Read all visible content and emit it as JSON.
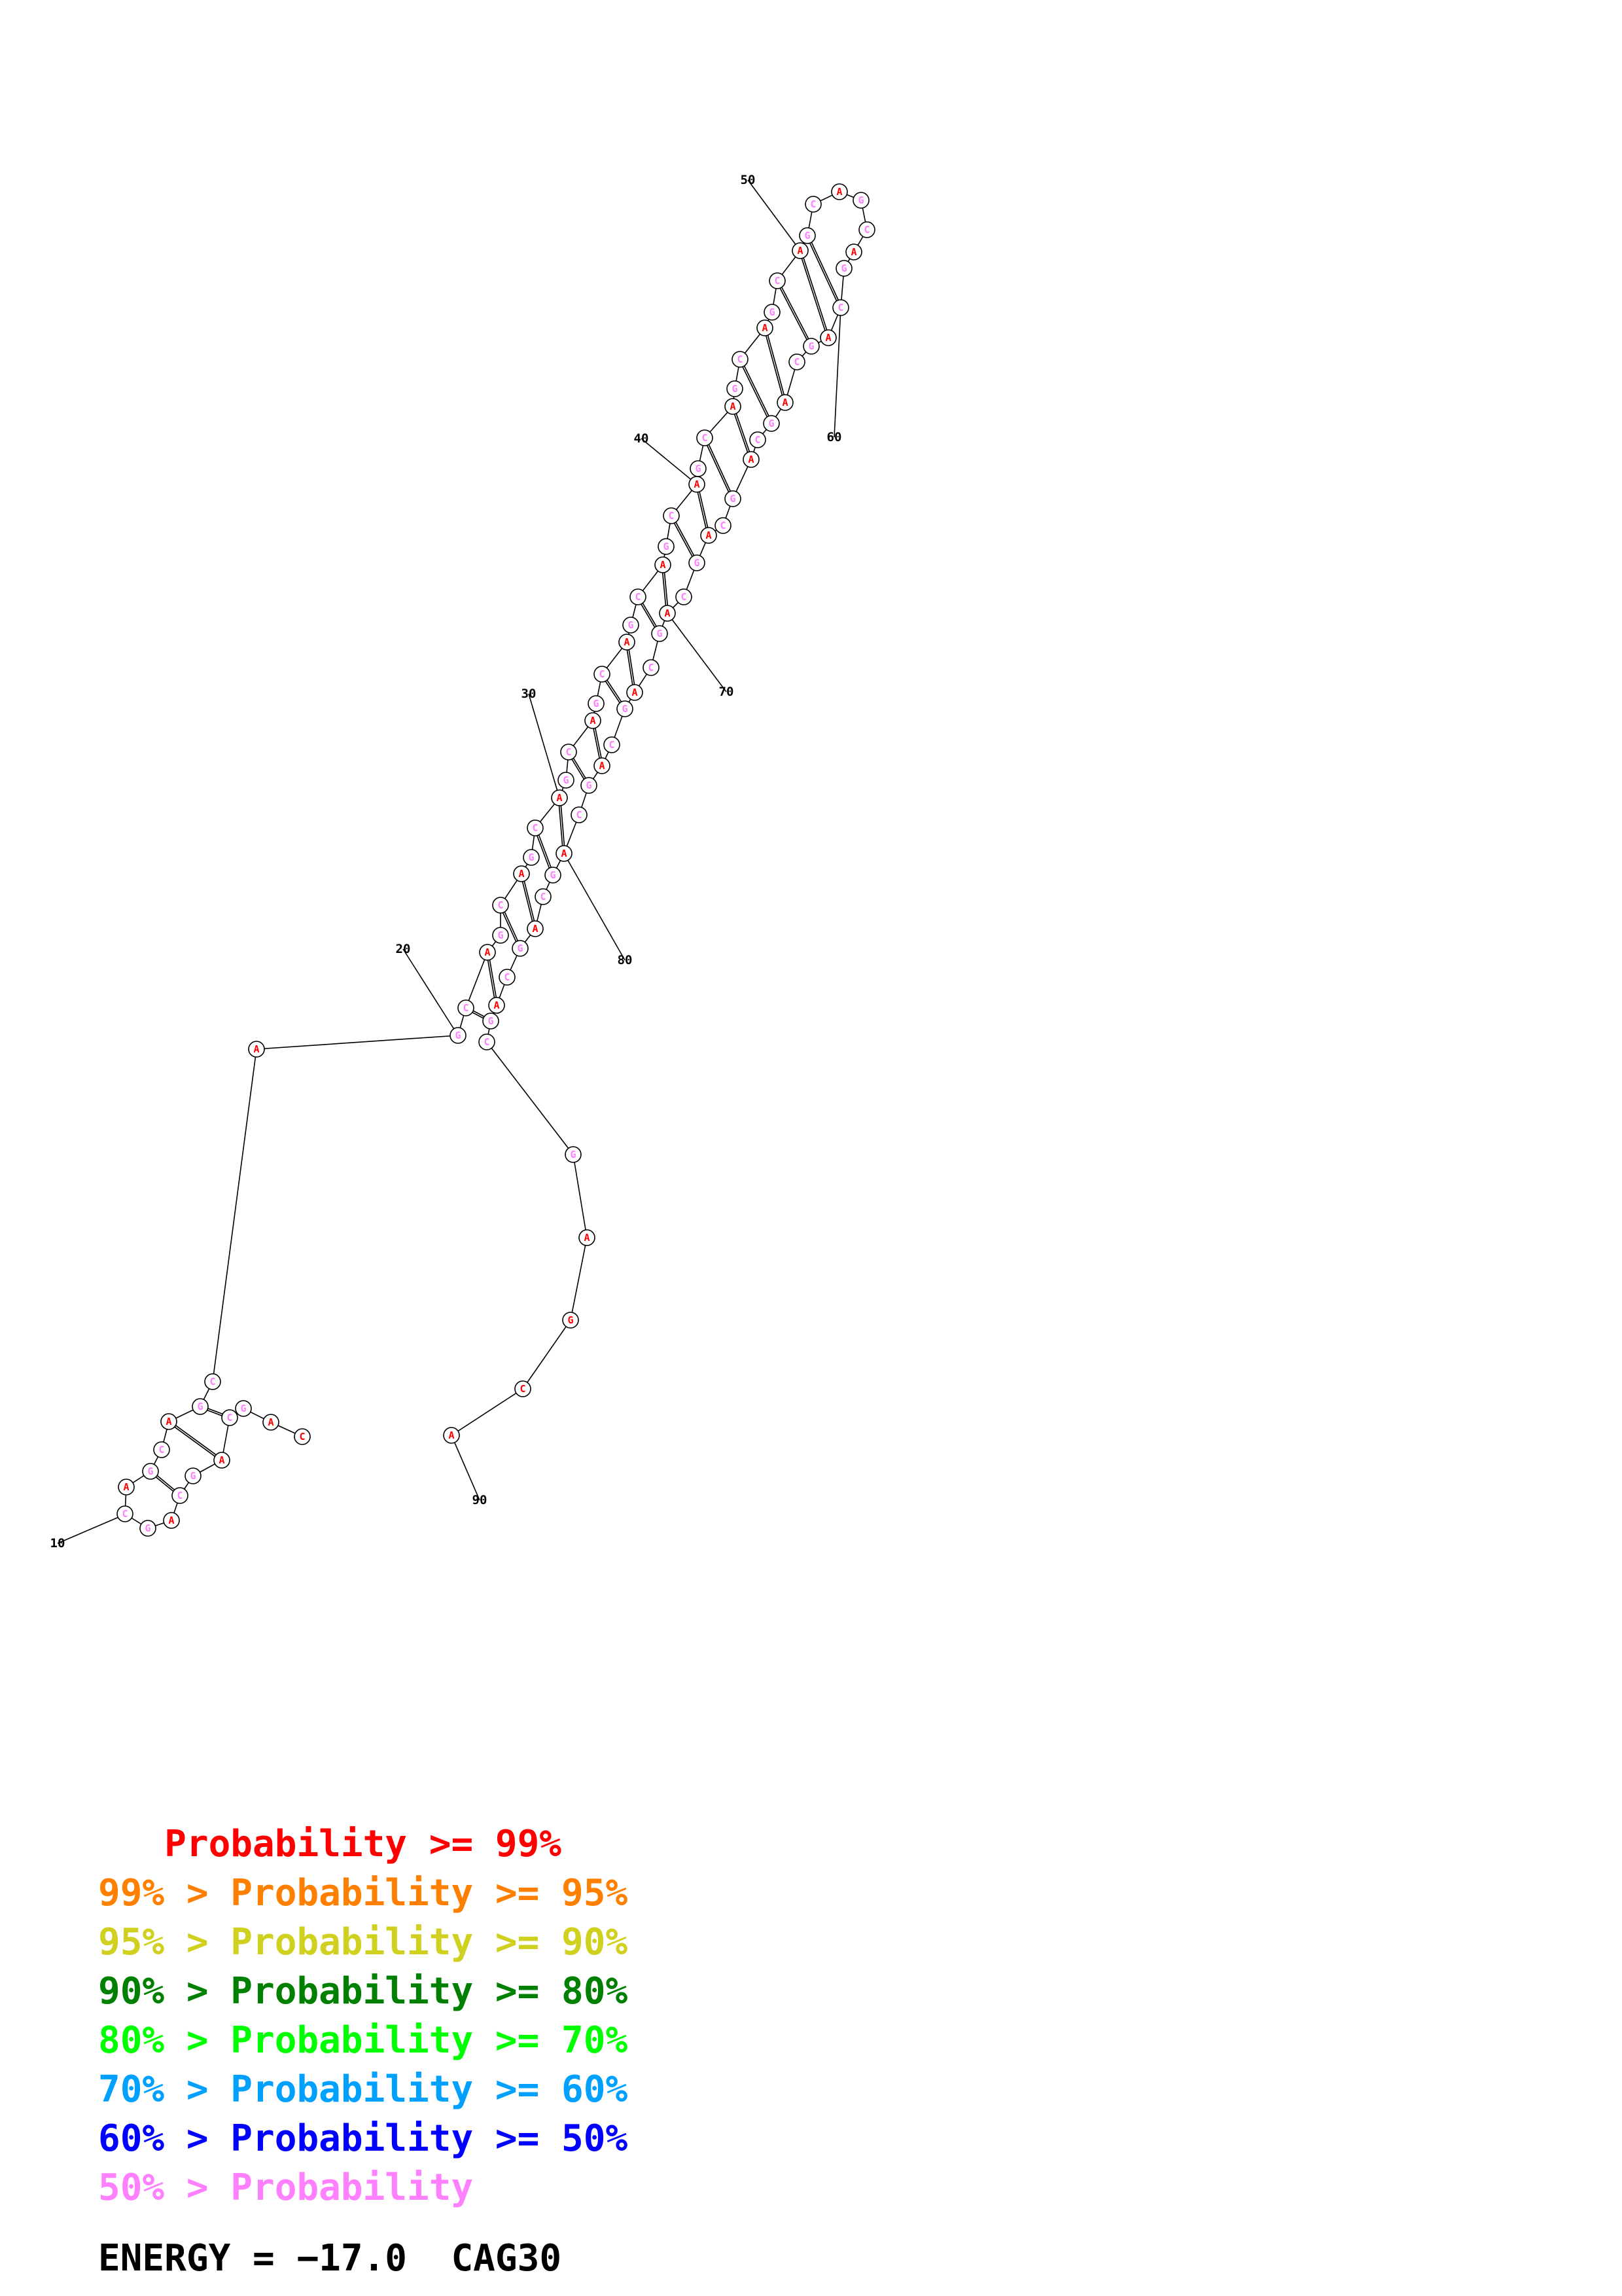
{
  "diagram": {
    "sequence_length": 91,
    "nucleotides": [
      {
        "index": 2,
        "base": "C",
        "color": "#ff0000"
      },
      {
        "index": 3,
        "base": "A",
        "color": "#ff0000"
      },
      {
        "index": 4,
        "base": "G",
        "color": "#ff80ff"
      },
      {
        "index": 5,
        "base": "C",
        "color": "#ff80ff"
      },
      {
        "index": 6,
        "base": "A",
        "color": "#ff0000"
      },
      {
        "index": 7,
        "base": "G",
        "color": "#ff80ff"
      },
      {
        "index": 8,
        "base": "C",
        "color": "#ff80ff"
      },
      {
        "index": 9,
        "base": "A",
        "color": "#ff0000"
      },
      {
        "index": 10,
        "base": "G",
        "color": "#ff80ff"
      },
      {
        "index": 11,
        "base": "C",
        "color": "#ff80ff"
      },
      {
        "index": 12,
        "base": "A",
        "color": "#ff0000"
      },
      {
        "index": 13,
        "base": "G",
        "color": "#ff80ff"
      },
      {
        "index": 14,
        "base": "C",
        "color": "#ff80ff"
      },
      {
        "index": 15,
        "base": "A",
        "color": "#ff0000"
      },
      {
        "index": 16,
        "base": "G",
        "color": "#ff80ff"
      },
      {
        "index": 17,
        "base": "C",
        "color": "#ff80ff"
      },
      {
        "index": 18,
        "base": "A",
        "color": "#ff0000"
      },
      {
        "index": 19,
        "base": "G",
        "color": "#ff80ff"
      },
      {
        "index": 20,
        "base": "C",
        "color": "#ff80ff"
      },
      {
        "index": 21,
        "base": "A",
        "color": "#ff0000"
      },
      {
        "index": 22,
        "base": "G",
        "color": "#ff80ff"
      },
      {
        "index": 23,
        "base": "C",
        "color": "#ff80ff"
      },
      {
        "index": 24,
        "base": "A",
        "color": "#ff0000"
      },
      {
        "index": 25,
        "base": "G",
        "color": "#ff80ff"
      },
      {
        "index": 26,
        "base": "C",
        "color": "#ff80ff"
      },
      {
        "index": 27,
        "base": "A",
        "color": "#ff0000"
      },
      {
        "index": 28,
        "base": "G",
        "color": "#ff80ff"
      },
      {
        "index": 29,
        "base": "C",
        "color": "#ff80ff"
      },
      {
        "index": 30,
        "base": "A",
        "color": "#ff0000"
      },
      {
        "index": 31,
        "base": "G",
        "color": "#ff80ff"
      },
      {
        "index": 32,
        "base": "C",
        "color": "#ff80ff"
      },
      {
        "index": 33,
        "base": "A",
        "color": "#ff0000"
      },
      {
        "index": 34,
        "base": "G",
        "color": "#ff80ff"
      },
      {
        "index": 35,
        "base": "C",
        "color": "#ff80ff"
      },
      {
        "index": 36,
        "base": "A",
        "color": "#ff0000"
      },
      {
        "index": 37,
        "base": "G",
        "color": "#ff80ff"
      },
      {
        "index": 38,
        "base": "C",
        "color": "#ff80ff"
      },
      {
        "index": 39,
        "base": "A",
        "color": "#ff0000"
      },
      {
        "index": 40,
        "base": "G",
        "color": "#ff80ff"
      },
      {
        "index": 41,
        "base": "C",
        "color": "#ff80ff"
      },
      {
        "index": 42,
        "base": "A",
        "color": "#ff0000"
      },
      {
        "index": 43,
        "base": "G",
        "color": "#ff80ff"
      },
      {
        "index": 44,
        "base": "C",
        "color": "#ff80ff"
      },
      {
        "index": 45,
        "base": "A",
        "color": "#ff0000"
      },
      {
        "index": 46,
        "base": "G",
        "color": "#ff80ff"
      },
      {
        "index": 47,
        "base": "C",
        "color": "#ff80ff"
      },
      {
        "index": 48,
        "base": "A",
        "color": "#ff0000"
      },
      {
        "index": 49,
        "base": "G",
        "color": "#ff80ff"
      },
      {
        "index": 50,
        "base": "C",
        "color": "#ff80ff"
      },
      {
        "index": 51,
        "base": "A",
        "color": "#ff0000"
      },
      {
        "index": 52,
        "base": "G",
        "color": "#ff80ff"
      },
      {
        "index": 53,
        "base": "C",
        "color": "#ff80ff"
      },
      {
        "index": 54,
        "base": "A",
        "color": "#ff0000"
      },
      {
        "index": 55,
        "base": "G",
        "color": "#ff80ff"
      },
      {
        "index": 56,
        "base": "C",
        "color": "#ff80ff"
      },
      {
        "index": 57,
        "base": "A",
        "color": "#ff0000"
      },
      {
        "index": 58,
        "base": "G",
        "color": "#ff80ff"
      },
      {
        "index": 59,
        "base": "C",
        "color": "#ff80ff"
      },
      {
        "index": 60,
        "base": "A",
        "color": "#ff0000"
      },
      {
        "index": 61,
        "base": "G",
        "color": "#ff80ff"
      },
      {
        "index": 62,
        "base": "C",
        "color": "#ff80ff"
      },
      {
        "index": 63,
        "base": "A",
        "color": "#ff0000"
      },
      {
        "index": 64,
        "base": "G",
        "color": "#ff80ff"
      },
      {
        "index": 65,
        "base": "C",
        "color": "#ff80ff"
      },
      {
        "index": 66,
        "base": "A",
        "color": "#ff0000"
      },
      {
        "index": 67,
        "base": "G",
        "color": "#ff80ff"
      },
      {
        "index": 68,
        "base": "C",
        "color": "#ff80ff"
      },
      {
        "index": 69,
        "base": "A",
        "color": "#ff0000"
      },
      {
        "index": 70,
        "base": "G",
        "color": "#ff80ff"
      },
      {
        "index": 71,
        "base": "C",
        "color": "#ff80ff"
      },
      {
        "index": 72,
        "base": "A",
        "color": "#ff0000"
      },
      {
        "index": 73,
        "base": "G",
        "color": "#ff80ff"
      },
      {
        "index": 74,
        "base": "C",
        "color": "#ff80ff"
      },
      {
        "index": 75,
        "base": "A",
        "color": "#ff0000"
      },
      {
        "index": 76,
        "base": "G",
        "color": "#ff80ff"
      },
      {
        "index": 77,
        "base": "C",
        "color": "#ff80ff"
      },
      {
        "index": 78,
        "base": "A",
        "color": "#ff0000"
      },
      {
        "index": 79,
        "base": "G",
        "color": "#ff80ff"
      },
      {
        "index": 80,
        "base": "C",
        "color": "#ff80ff"
      },
      {
        "index": 81,
        "base": "A",
        "color": "#ff0000"
      },
      {
        "index": 82,
        "base": "G",
        "color": "#ff80ff"
      },
      {
        "index": 83,
        "base": "C",
        "color": "#ff80ff"
      },
      {
        "index": 84,
        "base": "A",
        "color": "#ff0000"
      },
      {
        "index": 85,
        "base": "G",
        "color": "#ff80ff"
      },
      {
        "index": 86,
        "base": "C",
        "color": "#ff80ff"
      },
      {
        "index": 87,
        "base": "G",
        "color": "#ff80ff"
      },
      {
        "index": 88,
        "base": "A",
        "color": "#ff0000"
      },
      {
        "index": 89,
        "base": "G",
        "color": "#ff0000"
      }
    ],
    "base_pairs": [
      [
        5,
        13
      ],
      [
        6,
        12
      ],
      [
        7,
        11
      ],
      [
        19,
        85
      ],
      [
        20,
        84
      ],
      [
        22,
        82
      ],
      [
        23,
        81
      ],
      [
        25,
        79
      ],
      [
        26,
        78
      ],
      [
        28,
        76
      ],
      [
        29,
        75
      ],
      [
        31,
        73
      ],
      [
        32,
        72
      ],
      [
        34,
        70
      ],
      [
        35,
        69
      ],
      [
        37,
        67
      ],
      [
        38,
        66
      ],
      [
        40,
        64
      ],
      [
        41,
        63
      ],
      [
        43,
        61
      ],
      [
        44,
        60
      ],
      [
        46,
        58
      ],
      [
        47,
        57
      ],
      [
        49,
        55
      ],
      [
        50,
        54
      ]
    ],
    "position_labels": [
      "10",
      "20",
      "30",
      "40",
      "50",
      "60",
      "70",
      "80",
      "90"
    ]
  },
  "legend": [
    {
      "prefix": "   ",
      "text": "Probability >= 99%",
      "color": "#ff0000"
    },
    {
      "prefix": "99% > ",
      "text": "Probability >= 95%",
      "color": "#ff8000"
    },
    {
      "prefix": "95% > ",
      "text": "Probability >= 90%",
      "color": "#d0d020"
    },
    {
      "prefix": "90% > ",
      "text": "Probability >= 80%",
      "color": "#008000"
    },
    {
      "prefix": "80% > ",
      "text": "Probability >= 70%",
      "color": "#00ff00"
    },
    {
      "prefix": "70% > ",
      "text": "Probability >= 60%",
      "color": "#00a0ff"
    },
    {
      "prefix": "60% > ",
      "text": "Probability >= 50%",
      "color": "#0000ff"
    },
    {
      "prefix": "50% > ",
      "text": "Probability",
      "color": "#ff80ff"
    }
  ],
  "footer": {
    "energy_label": "ENERGY = ",
    "energy_value": "−17.0",
    "sequence_name": "CAG30"
  },
  "colors": {
    "background": "#ffffff",
    "backbone": "#000000",
    "high_prob": "#ff0000",
    "low_prob": "#ff80ff"
  }
}
